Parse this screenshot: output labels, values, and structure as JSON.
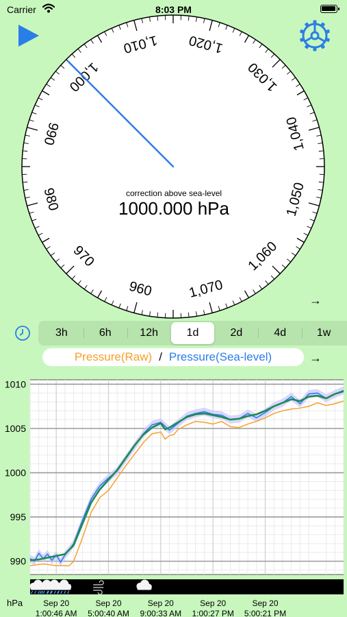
{
  "status_bar": {
    "carrier": "Carrier",
    "time": "8:03 PM",
    "battery_level": 1.0
  },
  "gauge": {
    "caption": "correction above sea-level",
    "reading": "1000.000 hPa",
    "value": 1000.0,
    "scale_min": 955,
    "scale_max": 1075,
    "tick_labels": [
      "960",
      "970",
      "980",
      "990",
      "1,000",
      "1,010",
      "1,020",
      "1,030",
      "1,040",
      "1,050",
      "1,060",
      "1,070"
    ],
    "needle_color": "#2a7ee8"
  },
  "range_selector": {
    "options": [
      "3h",
      "6h",
      "12h",
      "1d",
      "2d",
      "4d",
      "1w"
    ],
    "selected": "1d"
  },
  "legend": {
    "raw_label": "Pressure(Raw)",
    "separator": "/",
    "sea_level_label": "Pressure(Sea-level)",
    "raw_color": "#f5a02a",
    "sea_level_color": "#2a7ee8"
  },
  "arrows": {
    "dial": "→",
    "legend": "→"
  },
  "colors": {
    "background": "#c8f7be",
    "accent": "#2a7ee8",
    "trend": "#1f8a52",
    "band": "#c9c6ff"
  },
  "icons": {
    "play": "play-icon",
    "settings": "gear-icon",
    "history": "clock-icon"
  },
  "chart_data": {
    "type": "line",
    "ylabel": "hPa",
    "ylim": [
      988.5,
      1010.5
    ],
    "y_ticks": [
      990,
      995,
      1000,
      1005,
      1010
    ],
    "x_range": [
      0,
      1440
    ],
    "x_ticks": [
      {
        "value": 120,
        "date": "Sep 20",
        "time": "1:00:46 AM"
      },
      {
        "value": 360,
        "date": "Sep 20",
        "time": "5:00:40 AM"
      },
      {
        "value": 600,
        "date": "Sep 20",
        "time": "9:00:33 AM"
      },
      {
        "value": 840,
        "date": "Sep 20",
        "time": "1:00:27 PM"
      },
      {
        "value": 1080,
        "date": "Sep 20",
        "time": "5:00:21 PM"
      }
    ],
    "grid": true,
    "series": [
      {
        "name": "Pressure(Sea-level)",
        "color": "#2a7ee8",
        "x": [
          0,
          20,
          40,
          60,
          80,
          100,
          120,
          140,
          160,
          180,
          200,
          240,
          280,
          320,
          360,
          400,
          440,
          480,
          520,
          560,
          600,
          640,
          660,
          680,
          720,
          760,
          800,
          840,
          880,
          920,
          960,
          1000,
          1040,
          1080,
          1120,
          1160,
          1200,
          1240,
          1280,
          1320,
          1360,
          1400,
          1440
        ],
        "values": [
          990.3,
          990.0,
          990.9,
          990.3,
          990.8,
          990.1,
          990.7,
          989.9,
          990.7,
          991.3,
          992.0,
          994.6,
          997.0,
          998.5,
          999.4,
          1000.2,
          1001.6,
          1003.0,
          1004.4,
          1005.4,
          1005.7,
          1004.8,
          1005.2,
          1005.6,
          1006.4,
          1006.7,
          1006.9,
          1006.6,
          1006.5,
          1006.0,
          1006.1,
          1006.7,
          1006.2,
          1006.8,
          1007.5,
          1007.9,
          1008.6,
          1007.8,
          1008.9,
          1009.0,
          1008.4,
          1008.9,
          1009.3
        ]
      },
      {
        "name": "Pressure(Raw)",
        "color": "#f5a02a",
        "x": [
          0,
          60,
          120,
          180,
          200,
          240,
          280,
          320,
          360,
          400,
          440,
          480,
          520,
          560,
          600,
          620,
          640,
          660,
          680,
          720,
          760,
          800,
          840,
          880,
          920,
          960,
          1000,
          1040,
          1080,
          1120,
          1160,
          1200,
          1240,
          1280,
          1320,
          1360,
          1400,
          1440
        ],
        "values": [
          989.5,
          989.7,
          989.5,
          989.5,
          990.0,
          992.6,
          995.5,
          997.2,
          998.0,
          999.4,
          1000.8,
          1002.1,
          1003.4,
          1004.4,
          1004.6,
          1003.8,
          1004.2,
          1004.3,
          1004.9,
          1005.4,
          1005.8,
          1005.7,
          1005.5,
          1005.8,
          1005.2,
          1005.1,
          1005.5,
          1005.8,
          1006.2,
          1006.7,
          1007.0,
          1007.2,
          1007.3,
          1007.5,
          1007.9,
          1007.6,
          1007.8,
          1008.1
        ]
      },
      {
        "name": "trend",
        "color": "#1f8a52",
        "x": [
          0,
          40,
          80,
          120,
          160,
          200,
          240,
          280,
          320,
          360,
          400,
          440,
          480,
          520,
          560,
          600,
          620,
          640,
          680,
          720,
          760,
          800,
          840,
          880,
          920,
          960,
          1000,
          1040,
          1080,
          1120,
          1160,
          1200,
          1240,
          1280,
          1320,
          1360,
          1400,
          1440
        ],
        "values": [
          990.1,
          990.2,
          990.4,
          990.6,
          990.8,
          991.8,
          994.2,
          996.6,
          998.1,
          999.2,
          1000.3,
          1001.7,
          1003.1,
          1004.3,
          1005.1,
          1005.6,
          1004.9,
          1005.1,
          1005.7,
          1006.3,
          1006.6,
          1006.7,
          1006.5,
          1006.3,
          1006.0,
          1006.1,
          1006.4,
          1006.6,
          1007.0,
          1007.5,
          1007.9,
          1008.3,
          1008.1,
          1008.6,
          1008.7,
          1008.4,
          1008.9,
          1009.2
        ]
      }
    ],
    "weather_strip": [
      {
        "x": 30,
        "icon": "rain-cloud-icon"
      },
      {
        "x": 70,
        "icon": "rain-cloud-icon"
      },
      {
        "x": 105,
        "icon": "rain-cloud-icon"
      },
      {
        "x": 150,
        "icon": "night-rain-cloud-icon"
      },
      {
        "x": 315,
        "icon": "wind-icon"
      },
      {
        "x": 520,
        "icon": "cloud-icon"
      }
    ]
  }
}
